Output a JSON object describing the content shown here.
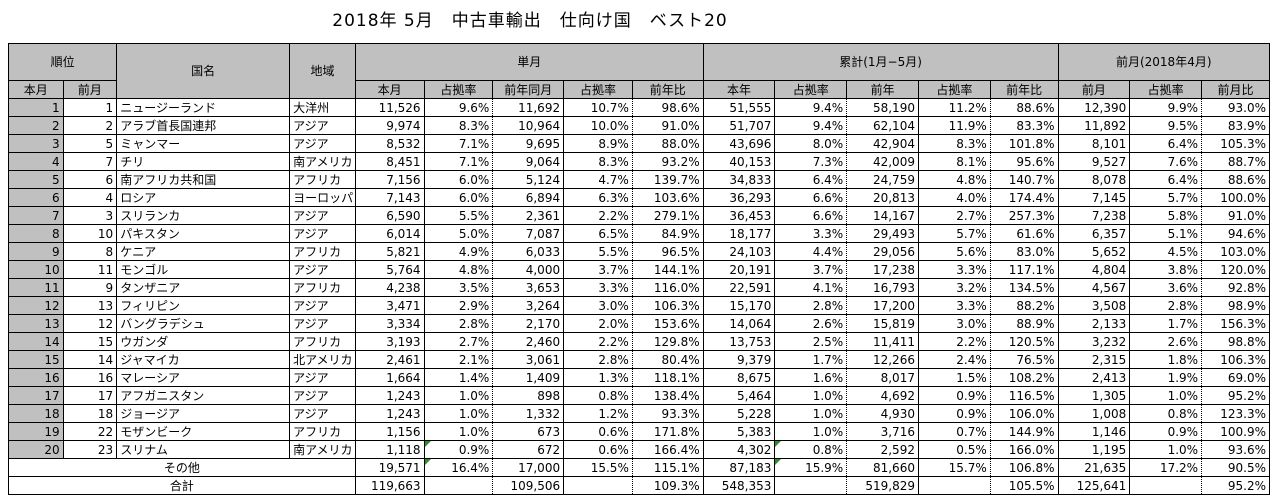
{
  "title": "2018年 5月　中古車輸出　仕向け国　ベスト20",
  "headers": {
    "rank": "順位",
    "country": "国名",
    "region": "地域",
    "single": "単月",
    "cumulative": "累計(1月−5月)",
    "prev": "前月(2018年4月)",
    "rank_cur": "本月",
    "rank_prev": "前月",
    "s_cur": "本月",
    "s_share": "占拠率",
    "s_ly": "前年同月",
    "s_ly_share": "占拠率",
    "s_yoy": "前年比",
    "c_cur": "本年",
    "c_share": "占拠率",
    "c_ly": "前年",
    "c_ly_share": "占拠率",
    "c_yoy": "前年比",
    "p_val": "前月",
    "p_share": "占拠率",
    "p_ratio": "前月比"
  },
  "rows": [
    [
      "1",
      "1",
      "ニュージーランド",
      "大洋州",
      "11,526",
      "9.6%",
      "11,692",
      "10.7%",
      "98.6%",
      "51,555",
      "9.4%",
      "58,190",
      "11.2%",
      "88.6%",
      "12,390",
      "9.9%",
      "93.0%"
    ],
    [
      "2",
      "2",
      "アラブ首長国連邦",
      "アジア",
      "9,974",
      "8.3%",
      "10,964",
      "10.0%",
      "91.0%",
      "51,707",
      "9.4%",
      "62,104",
      "11.9%",
      "83.3%",
      "11,892",
      "9.5%",
      "83.9%"
    ],
    [
      "3",
      "5",
      "ミャンマー",
      "アジア",
      "8,532",
      "7.1%",
      "9,695",
      "8.9%",
      "88.0%",
      "43,696",
      "8.0%",
      "42,904",
      "8.3%",
      "101.8%",
      "8,101",
      "6.4%",
      "105.3%"
    ],
    [
      "4",
      "7",
      "チリ",
      "南アメリカ",
      "8,451",
      "7.1%",
      "9,064",
      "8.3%",
      "93.2%",
      "40,153",
      "7.3%",
      "42,009",
      "8.1%",
      "95.6%",
      "9,527",
      "7.6%",
      "88.7%"
    ],
    [
      "5",
      "6",
      "南アフリカ共和国",
      "アフリカ",
      "7,156",
      "6.0%",
      "5,124",
      "4.7%",
      "139.7%",
      "34,833",
      "6.4%",
      "24,759",
      "4.8%",
      "140.7%",
      "8,078",
      "6.4%",
      "88.6%"
    ],
    [
      "6",
      "4",
      "ロシア",
      "ヨーロッパ",
      "7,143",
      "6.0%",
      "6,894",
      "6.3%",
      "103.6%",
      "36,293",
      "6.6%",
      "20,813",
      "4.0%",
      "174.4%",
      "7,145",
      "5.7%",
      "100.0%"
    ],
    [
      "7",
      "3",
      "スリランカ",
      "アジア",
      "6,590",
      "5.5%",
      "2,361",
      "2.2%",
      "279.1%",
      "36,453",
      "6.6%",
      "14,167",
      "2.7%",
      "257.3%",
      "7,238",
      "5.8%",
      "91.0%"
    ],
    [
      "8",
      "10",
      "パキスタン",
      "アジア",
      "6,014",
      "5.0%",
      "7,087",
      "6.5%",
      "84.9%",
      "18,177",
      "3.3%",
      "29,493",
      "5.7%",
      "61.6%",
      "6,357",
      "5.1%",
      "94.6%"
    ],
    [
      "9",
      "8",
      "ケニア",
      "アフリカ",
      "5,821",
      "4.9%",
      "6,033",
      "5.5%",
      "96.5%",
      "24,103",
      "4.4%",
      "29,056",
      "5.6%",
      "83.0%",
      "5,652",
      "4.5%",
      "103.0%"
    ],
    [
      "10",
      "11",
      "モンゴル",
      "アジア",
      "5,764",
      "4.8%",
      "4,000",
      "3.7%",
      "144.1%",
      "20,191",
      "3.7%",
      "17,238",
      "3.3%",
      "117.1%",
      "4,804",
      "3.8%",
      "120.0%"
    ],
    [
      "11",
      "9",
      "タンザニア",
      "アフリカ",
      "4,238",
      "3.5%",
      "3,653",
      "3.3%",
      "116.0%",
      "22,591",
      "4.1%",
      "16,793",
      "3.2%",
      "134.5%",
      "4,567",
      "3.6%",
      "92.8%"
    ],
    [
      "12",
      "13",
      "フィリピン",
      "アジア",
      "3,471",
      "2.9%",
      "3,264",
      "3.0%",
      "106.3%",
      "15,170",
      "2.8%",
      "17,200",
      "3.3%",
      "88.2%",
      "3,508",
      "2.8%",
      "98.9%"
    ],
    [
      "13",
      "12",
      "バングラデシュ",
      "アジア",
      "3,334",
      "2.8%",
      "2,170",
      "2.0%",
      "153.6%",
      "14,064",
      "2.6%",
      "15,819",
      "3.0%",
      "88.9%",
      "2,133",
      "1.7%",
      "156.3%"
    ],
    [
      "14",
      "15",
      "ウガンダ",
      "アフリカ",
      "3,193",
      "2.7%",
      "2,460",
      "2.2%",
      "129.8%",
      "13,753",
      "2.5%",
      "11,411",
      "2.2%",
      "120.5%",
      "3,232",
      "2.6%",
      "98.8%"
    ],
    [
      "15",
      "14",
      "ジャマイカ",
      "北アメリカ",
      "2,461",
      "2.1%",
      "3,061",
      "2.8%",
      "80.4%",
      "9,379",
      "1.7%",
      "12,266",
      "2.4%",
      "76.5%",
      "2,315",
      "1.8%",
      "106.3%"
    ],
    [
      "16",
      "16",
      "マレーシア",
      "アジア",
      "1,664",
      "1.4%",
      "1,409",
      "1.3%",
      "118.1%",
      "8,675",
      "1.6%",
      "8,017",
      "1.5%",
      "108.2%",
      "2,413",
      "1.9%",
      "69.0%"
    ],
    [
      "17",
      "17",
      "アフガニスタン",
      "アジア",
      "1,243",
      "1.0%",
      "898",
      "0.8%",
      "138.4%",
      "5,464",
      "1.0%",
      "4,692",
      "0.9%",
      "116.5%",
      "1,305",
      "1.0%",
      "95.2%"
    ],
    [
      "18",
      "18",
      "ジョージア",
      "アジア",
      "1,243",
      "1.0%",
      "1,332",
      "1.2%",
      "93.3%",
      "5,228",
      "1.0%",
      "4,930",
      "0.9%",
      "106.0%",
      "1,008",
      "0.8%",
      "123.3%"
    ],
    [
      "19",
      "22",
      "モザンビーク",
      "アフリカ",
      "1,156",
      "1.0%",
      "673",
      "0.6%",
      "171.8%",
      "5,383",
      "1.0%",
      "3,716",
      "0.7%",
      "144.9%",
      "1,146",
      "0.9%",
      "100.9%"
    ],
    [
      "20",
      "23",
      "スリナム",
      "南アメリカ",
      "1,118",
      "0.9%",
      "672",
      "0.6%",
      "166.4%",
      "4,302",
      "0.8%",
      "2,592",
      "0.5%",
      "166.0%",
      "1,195",
      "1.0%",
      "93.6%"
    ]
  ],
  "other": {
    "label": "その他",
    "values": [
      "19,571",
      "16.4%",
      "17,000",
      "15.5%",
      "115.1%",
      "87,183",
      "15.9%",
      "81,660",
      "15.7%",
      "106.8%",
      "21,635",
      "17.2%",
      "90.5%"
    ]
  },
  "total": {
    "label": "合計",
    "values": [
      "119,663",
      "",
      "109,506",
      "",
      "109.3%",
      "548,353",
      "",
      "519,829",
      "",
      "105.5%",
      "125,641",
      "",
      "95.2%"
    ]
  }
}
